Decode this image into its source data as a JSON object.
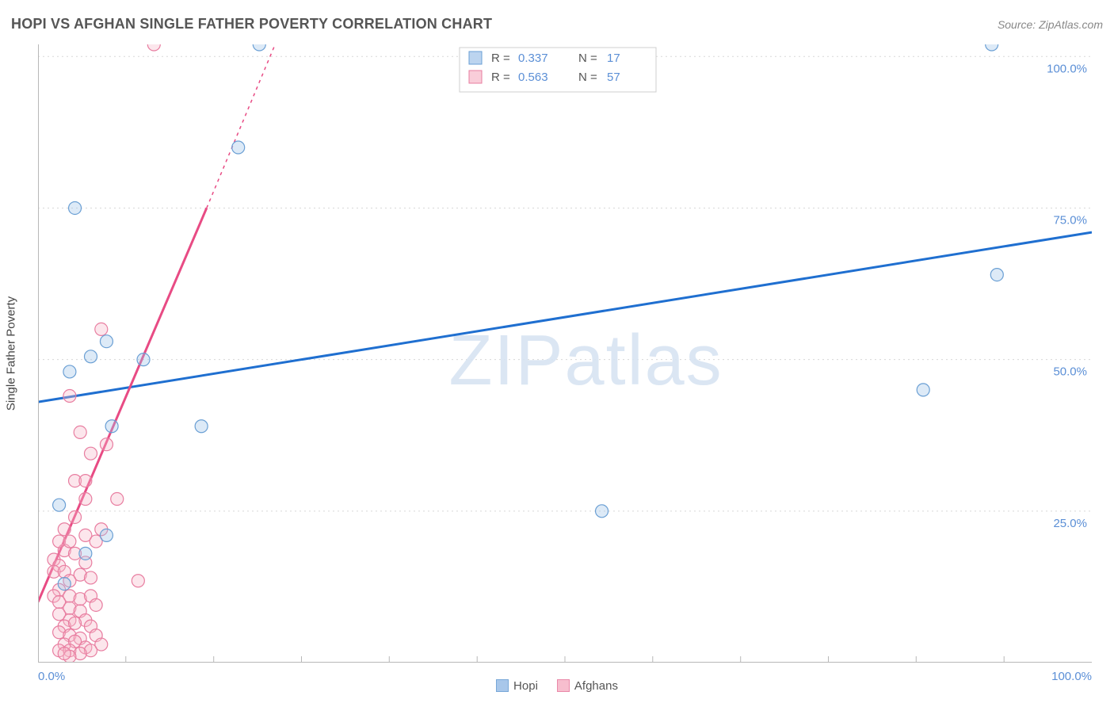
{
  "title": "HOPI VS AFGHAN SINGLE FATHER POVERTY CORRELATION CHART",
  "source_label": "Source: ZipAtlas.com",
  "y_axis_label": "Single Father Poverty",
  "watermark": "ZIPatlas",
  "chart": {
    "type": "scatter",
    "xlim": [
      0,
      100
    ],
    "ylim": [
      0,
      102
    ],
    "x_ticks_major": [
      0,
      100
    ],
    "x_ticks_minor": [
      8.33,
      16.67,
      25,
      33.33,
      41.67,
      50,
      58.33,
      66.67,
      75,
      83.33,
      91.67
    ],
    "x_tick_labels": [
      "0.0%",
      "100.0%"
    ],
    "y_ticks": [
      25,
      50,
      75,
      100
    ],
    "y_tick_labels": [
      "25.0%",
      "50.0%",
      "75.0%",
      "100.0%"
    ],
    "grid_color": "#d8d8d8",
    "axis_color": "#b8b8b8",
    "background_color": "#ffffff",
    "marker_radius": 8,
    "marker_stroke_width": 1.2,
    "marker_fill_opacity": 0.35,
    "trend_line_width": 3,
    "series": [
      {
        "name": "Hopi",
        "R": "0.337",
        "N": "17",
        "fill": "#9fc2e8",
        "stroke": "#6a9fd4",
        "line_color": "#1f6fd0",
        "trend": {
          "x1": 0,
          "y1": 43,
          "x2": 100,
          "y2": 71
        },
        "points": [
          [
            21,
            102
          ],
          [
            90.5,
            102
          ],
          [
            19,
            85
          ],
          [
            3.5,
            75
          ],
          [
            6.5,
            53
          ],
          [
            5,
            50.5
          ],
          [
            10,
            50
          ],
          [
            3,
            48
          ],
          [
            84,
            45
          ],
          [
            7,
            39
          ],
          [
            15.5,
            39
          ],
          [
            53.5,
            25
          ],
          [
            2,
            26
          ],
          [
            6.5,
            21
          ],
          [
            4.5,
            18
          ],
          [
            2.5,
            13
          ],
          [
            91,
            64
          ]
        ]
      },
      {
        "name": "Afghans",
        "R": "0.563",
        "N": "57",
        "fill": "#f7b8c9",
        "stroke": "#e87da0",
        "line_color": "#e84b84",
        "trend": {
          "x1": 0,
          "y1": 10,
          "x2": 16,
          "y2": 75
        },
        "trend_dashed": {
          "x1": 16,
          "y1": 75,
          "x2": 22.5,
          "y2": 102
        },
        "points": [
          [
            11,
            102
          ],
          [
            6,
            55
          ],
          [
            3,
            44
          ],
          [
            6.5,
            36
          ],
          [
            4,
            38
          ],
          [
            5,
            34.5
          ],
          [
            3.5,
            30
          ],
          [
            4.5,
            30
          ],
          [
            4.5,
            27
          ],
          [
            7.5,
            27
          ],
          [
            3.5,
            24
          ],
          [
            4.5,
            21
          ],
          [
            5.5,
            20
          ],
          [
            6,
            22
          ],
          [
            2.5,
            22
          ],
          [
            2.5,
            18.5
          ],
          [
            1.5,
            17
          ],
          [
            2,
            20
          ],
          [
            3,
            20
          ],
          [
            3.5,
            18
          ],
          [
            2,
            16
          ],
          [
            1.5,
            15
          ],
          [
            2.5,
            15
          ],
          [
            3,
            13.5
          ],
          [
            4,
            14.5
          ],
          [
            4.5,
            16.5
          ],
          [
            5,
            14
          ],
          [
            9.5,
            13.5
          ],
          [
            2,
            12
          ],
          [
            1.5,
            11
          ],
          [
            3,
            11
          ],
          [
            2,
            10
          ],
          [
            4,
            10.5
          ],
          [
            5,
            11
          ],
          [
            3,
            9
          ],
          [
            4,
            8.5
          ],
          [
            5.5,
            9.5
          ],
          [
            2,
            8
          ],
          [
            3,
            7
          ],
          [
            4.5,
            7
          ],
          [
            2.5,
            6
          ],
          [
            3.5,
            6.5
          ],
          [
            5,
            6
          ],
          [
            2,
            5
          ],
          [
            3,
            4.5
          ],
          [
            4,
            4
          ],
          [
            5.5,
            4.5
          ],
          [
            2.5,
            3
          ],
          [
            3.5,
            3.5
          ],
          [
            4.5,
            2.5
          ],
          [
            2,
            2
          ],
          [
            3,
            2
          ],
          [
            6,
            3
          ],
          [
            5,
            2
          ],
          [
            4,
            1.5
          ],
          [
            3,
            1
          ],
          [
            2.5,
            1.5
          ]
        ]
      }
    ]
  },
  "legend_top": {
    "rows": [
      {
        "series_idx": 0,
        "r_label": "R =",
        "n_label": "N ="
      },
      {
        "series_idx": 1,
        "r_label": "R =",
        "n_label": "N ="
      }
    ]
  },
  "legend_bottom": {
    "items": [
      {
        "series_idx": 0
      },
      {
        "series_idx": 1
      }
    ]
  }
}
